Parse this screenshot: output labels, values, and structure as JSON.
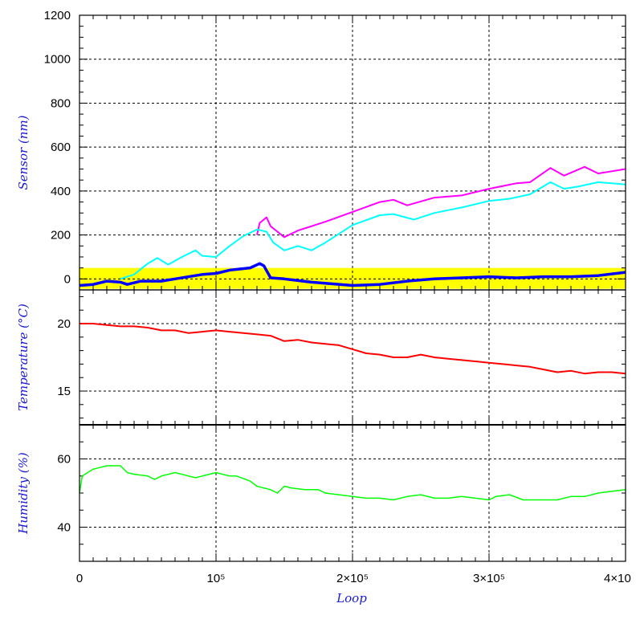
{
  "chart_data": {
    "type": "line",
    "x_axis": {
      "label": "Loop",
      "range": [
        0,
        400000
      ],
      "ticks": [
        {
          "value": 0,
          "label": "0"
        },
        {
          "value": 100000,
          "label": "10⁵"
        },
        {
          "value": 200000,
          "label": "2×10⁵"
        },
        {
          "value": 300000,
          "label": "3×10⁵"
        },
        {
          "value": 400000,
          "label": "4×10"
        }
      ]
    },
    "panels": [
      {
        "id": "sensor",
        "ylabel": "Sensor (nm)",
        "ylim": [
          -50,
          1200
        ],
        "yticks": [
          0,
          200,
          400,
          600,
          800,
          1000,
          1200
        ],
        "grid": true,
        "band": {
          "from": -45,
          "to": 50,
          "color": "#ffff00"
        },
        "series": [
          {
            "color": "#ff00ff",
            "width": 2,
            "x": [
              130000,
              132000,
              137000,
              140000,
              145000,
              150000,
              160000,
              180000,
              200000,
              220000,
              230000,
              240000,
              260000,
              280000,
              300000,
              320000,
              330000,
              345000,
              355000,
              370000,
              380000,
              400000
            ],
            "y": [
              200,
              255,
              280,
              240,
              215,
              190,
              220,
              260,
              305,
              350,
              360,
              335,
              370,
              380,
              410,
              435,
              440,
              505,
              470,
              510,
              480,
              500
            ]
          },
          {
            "color": "#00ffff",
            "width": 2,
            "x": [
              30000,
              40000,
              50000,
              57000,
              65000,
              75000,
              85000,
              90000,
              100000,
              110000,
              120000,
              130000,
              137000,
              142000,
              150000,
              160000,
              170000,
              180000,
              200000,
              220000,
              230000,
              245000,
              260000,
              280000,
              300000,
              315000,
              330000,
              345000,
              355000,
              365000,
              380000,
              400000
            ],
            "y": [
              0,
              20,
              70,
              95,
              65,
              100,
              130,
              105,
              100,
              150,
              195,
              225,
              215,
              165,
              130,
              150,
              130,
              165,
              245,
              290,
              295,
              270,
              300,
              325,
              355,
              365,
              385,
              440,
              410,
              420,
              440,
              430
            ]
          },
          {
            "color": "#0000ff",
            "width": 3.5,
            "x": [
              0,
              10000,
              20000,
              30000,
              35000,
              45000,
              60000,
              70000,
              90000,
              100000,
              110000,
              125000,
              132000,
              135000,
              140000,
              150000,
              170000,
              200000,
              220000,
              240000,
              260000,
              280000,
              300000,
              320000,
              340000,
              360000,
              380000,
              400000
            ],
            "y": [
              -30,
              -25,
              -10,
              -15,
              -25,
              -10,
              -10,
              0,
              20,
              25,
              40,
              50,
              70,
              60,
              5,
              0,
              -15,
              -30,
              -25,
              -10,
              0,
              5,
              10,
              5,
              10,
              10,
              15,
              30
            ]
          }
        ]
      },
      {
        "id": "temperature",
        "ylabel": "Temperature (°C)",
        "ylim": [
          12.5,
          22.5
        ],
        "yticks": [
          15,
          20
        ],
        "grid": true,
        "series": [
          {
            "color": "#ff0000",
            "width": 2,
            "x": [
              0,
              10000,
              30000,
              40000,
              50000,
              60000,
              70000,
              80000,
              90000,
              100000,
              110000,
              120000,
              130000,
              140000,
              150000,
              160000,
              170000,
              180000,
              190000,
              200000,
              210000,
              220000,
              230000,
              240000,
              250000,
              260000,
              270000,
              280000,
              290000,
              300000,
              310000,
              320000,
              330000,
              340000,
              350000,
              360000,
              370000,
              380000,
              390000,
              400000
            ],
            "y": [
              20.0,
              20.0,
              19.8,
              19.8,
              19.7,
              19.5,
              19.5,
              19.3,
              19.4,
              19.5,
              19.4,
              19.3,
              19.2,
              19.1,
              18.7,
              18.8,
              18.6,
              18.5,
              18.4,
              18.1,
              17.8,
              17.7,
              17.5,
              17.5,
              17.7,
              17.5,
              17.4,
              17.3,
              17.2,
              17.1,
              17.0,
              16.9,
              16.8,
              16.6,
              16.4,
              16.5,
              16.3,
              16.4,
              16.4,
              16.3
            ]
          }
        ]
      },
      {
        "id": "humidity",
        "ylabel": "Humidity (%)",
        "ylim": [
          30,
          70
        ],
        "yticks": [
          40,
          60
        ],
        "grid": true,
        "series": [
          {
            "color": "#00ff00",
            "width": 1.5,
            "x": [
              0,
              2000,
              10000,
              20000,
              30000,
              35000,
              40000,
              50000,
              55000,
              60000,
              70000,
              80000,
              85000,
              90000,
              100000,
              110000,
              115000,
              125000,
              130000,
              140000,
              145000,
              150000,
              155000,
              165000,
              175000,
              180000,
              190000,
              200000,
              210000,
              220000,
              230000,
              240000,
              250000,
              260000,
              270000,
              280000,
              290000,
              300000,
              305000,
              315000,
              325000,
              330000,
              340000,
              350000,
              360000,
              370000,
              380000,
              390000,
              400000
            ],
            "y": [
              50,
              55,
              57,
              58,
              58,
              56,
              55.5,
              55,
              54,
              55,
              56,
              55,
              54.5,
              55,
              56,
              55,
              55,
              53.5,
              52,
              51,
              50,
              52,
              51.5,
              51,
              51,
              50,
              49.5,
              49,
              48.5,
              48.5,
              48,
              49,
              49.5,
              48.5,
              48.5,
              49,
              48.5,
              48,
              49,
              49.5,
              48,
              48,
              48,
              48,
              49,
              49,
              50,
              50.5,
              51
            ]
          }
        ]
      }
    ]
  }
}
